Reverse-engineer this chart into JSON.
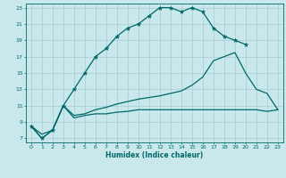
{
  "xlabel": "Humidex (Indice chaleur)",
  "bg_color": "#c8e8ec",
  "grid_color": "#a8ccd4",
  "line_color": "#006868",
  "xlim": [
    -0.5,
    23.5
  ],
  "ylim": [
    6.5,
    23.5
  ],
  "xticks": [
    0,
    1,
    2,
    3,
    4,
    5,
    6,
    7,
    8,
    9,
    10,
    11,
    12,
    13,
    14,
    15,
    16,
    17,
    18,
    19,
    20,
    21,
    22,
    23
  ],
  "yticks": [
    7,
    9,
    11,
    13,
    15,
    17,
    19,
    21,
    23
  ],
  "curve1_x": [
    0,
    1,
    2,
    3,
    4,
    5,
    6,
    7,
    8,
    9,
    10,
    11,
    12,
    13,
    14,
    15,
    16,
    17,
    18,
    19,
    20
  ],
  "curve1_y": [
    8.5,
    7.0,
    8.0,
    11.0,
    13.0,
    15.0,
    17.0,
    18.0,
    19.5,
    20.5,
    21.0,
    22.0,
    23.0,
    23.0,
    22.5,
    23.0,
    22.5,
    20.5,
    19.5,
    19.0,
    18.5
  ],
  "curve2_x": [
    0,
    1,
    2,
    3,
    4,
    5,
    6,
    7,
    8,
    9,
    10,
    11,
    12,
    13,
    14,
    15,
    16,
    17,
    18,
    19,
    20,
    21,
    22,
    23
  ],
  "curve2_y": [
    8.5,
    7.0,
    8.0,
    11.0,
    9.5,
    9.8,
    10.0,
    10.0,
    10.2,
    10.3,
    10.5,
    10.5,
    10.5,
    10.5,
    10.5,
    10.5,
    10.5,
    10.5,
    10.5,
    10.5,
    10.5,
    10.5,
    10.3,
    10.5
  ],
  "curve3_x": [
    0,
    1,
    2,
    3,
    4,
    5,
    6,
    7,
    8,
    9,
    10,
    11,
    12,
    13,
    14,
    15,
    16,
    17,
    18,
    19,
    20,
    21,
    22,
    23
  ],
  "curve3_y": [
    8.5,
    7.5,
    8.0,
    11.0,
    9.8,
    10.0,
    10.5,
    10.8,
    11.2,
    11.5,
    11.8,
    12.0,
    12.2,
    12.5,
    12.8,
    13.5,
    14.5,
    16.5,
    17.0,
    17.5,
    15.0,
    13.0,
    12.5,
    10.5
  ]
}
